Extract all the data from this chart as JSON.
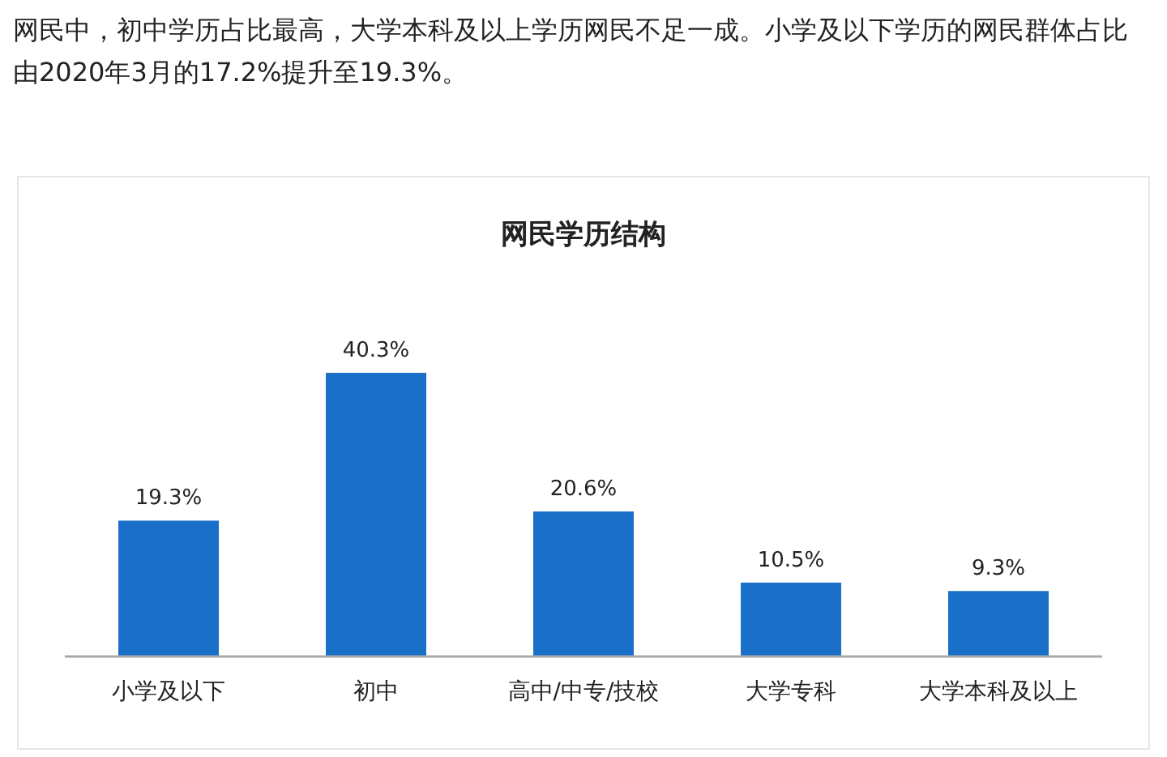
{
  "chart_data": {
    "type": "bar",
    "title": "网民学历结构",
    "annotations": [
      "网民中，初中学历占比最高，大学本科及以上学历网民不足一成。小学及以下学历的网民群体占比由2020年3月的17.2%提升至19.3%。"
    ],
    "categories": [
      "小学及以下",
      "初中",
      "高中/中专/技校",
      "大学专科",
      "大学本科及以上"
    ],
    "values": [
      19.3,
      40.3,
      20.6,
      10.5,
      9.3
    ],
    "value_labels": [
      "19.3%",
      "40.3%",
      "20.6%",
      "10.5%",
      "9.3%"
    ],
    "color": "#1a70c8"
  }
}
